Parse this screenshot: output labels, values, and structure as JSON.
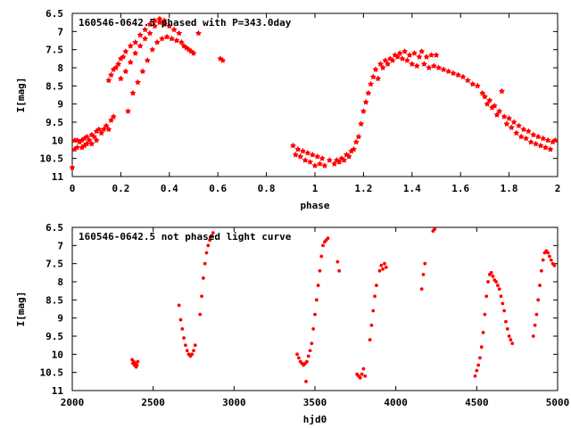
{
  "chart_data": [
    {
      "type": "scatter",
      "title": "160546-0642.5 phased with P=343.0day",
      "xlabel": "phase",
      "ylabel": "I[mag]",
      "xlim": [
        0,
        2
      ],
      "ylim": [
        11,
        6.5
      ],
      "y_inverted": true,
      "grid": false,
      "color": "#ff0000",
      "xticks": [
        "0",
        "0.2",
        "0.4",
        "0.6",
        "0.8",
        "1",
        "1.2",
        "1.4",
        "1.6",
        "1.8",
        "2"
      ],
      "yticks": [
        "6.5",
        "7",
        "7.5",
        "8",
        "8.5",
        "9",
        "9.5",
        "10",
        "10.5",
        "11"
      ],
      "points": [
        [
          0.0,
          10.75
        ],
        [
          0.01,
          10.0
        ],
        [
          0.01,
          10.25
        ],
        [
          0.02,
          10.0
        ],
        [
          0.02,
          10.2
        ],
        [
          0.03,
          10.05
        ],
        [
          0.04,
          10.0
        ],
        [
          0.04,
          10.2
        ],
        [
          0.05,
          9.95
        ],
        [
          0.05,
          10.15
        ],
        [
          0.06,
          9.9
        ],
        [
          0.06,
          10.1
        ],
        [
          0.07,
          10.0
        ],
        [
          0.08,
          9.85
        ],
        [
          0.08,
          10.1
        ],
        [
          0.09,
          9.9
        ],
        [
          0.1,
          9.75
        ],
        [
          0.1,
          10.0
        ],
        [
          0.11,
          9.7
        ],
        [
          0.12,
          9.8
        ],
        [
          0.13,
          9.7
        ],
        [
          0.14,
          9.6
        ],
        [
          0.15,
          9.7
        ],
        [
          0.15,
          8.35
        ],
        [
          0.16,
          9.45
        ],
        [
          0.16,
          8.2
        ],
        [
          0.17,
          9.35
        ],
        [
          0.17,
          8.05
        ],
        [
          0.18,
          8.0
        ],
        [
          0.19,
          7.9
        ],
        [
          0.2,
          8.3
        ],
        [
          0.2,
          7.75
        ],
        [
          0.21,
          7.7
        ],
        [
          0.22,
          8.1
        ],
        [
          0.22,
          7.55
        ],
        [
          0.23,
          9.2
        ],
        [
          0.24,
          7.85
        ],
        [
          0.24,
          7.4
        ],
        [
          0.25,
          8.7
        ],
        [
          0.26,
          7.6
        ],
        [
          0.26,
          7.3
        ],
        [
          0.27,
          8.4
        ],
        [
          0.28,
          7.4
        ],
        [
          0.28,
          7.1
        ],
        [
          0.29,
          8.1
        ],
        [
          0.3,
          7.2
        ],
        [
          0.3,
          6.95
        ],
        [
          0.31,
          7.8
        ],
        [
          0.32,
          7.05
        ],
        [
          0.32,
          6.8
        ],
        [
          0.33,
          7.5
        ],
        [
          0.34,
          6.85
        ],
        [
          0.34,
          6.7
        ],
        [
          0.35,
          7.3
        ],
        [
          0.36,
          6.75
        ],
        [
          0.36,
          6.65
        ],
        [
          0.37,
          7.2
        ],
        [
          0.38,
          6.8
        ],
        [
          0.38,
          6.7
        ],
        [
          0.39,
          7.15
        ],
        [
          0.4,
          6.85
        ],
        [
          0.41,
          7.2
        ],
        [
          0.42,
          6.95
        ],
        [
          0.43,
          7.25
        ],
        [
          0.44,
          7.05
        ],
        [
          0.45,
          7.3
        ],
        [
          0.46,
          7.4
        ],
        [
          0.47,
          7.45
        ],
        [
          0.48,
          7.5
        ],
        [
          0.49,
          7.55
        ],
        [
          0.5,
          7.6
        ],
        [
          0.52,
          7.05
        ],
        [
          0.61,
          7.75
        ],
        [
          0.62,
          7.8
        ],
        [
          0.91,
          10.15
        ],
        [
          0.92,
          10.4
        ],
        [
          0.93,
          10.25
        ],
        [
          0.94,
          10.45
        ],
        [
          0.95,
          10.3
        ],
        [
          0.96,
          10.55
        ],
        [
          0.97,
          10.35
        ],
        [
          0.98,
          10.6
        ],
        [
          0.99,
          10.4
        ],
        [
          1.0,
          10.7
        ],
        [
          1.01,
          10.45
        ],
        [
          1.02,
          10.65
        ],
        [
          1.03,
          10.5
        ],
        [
          1.04,
          10.7
        ],
        [
          1.06,
          10.55
        ],
        [
          1.08,
          10.65
        ],
        [
          1.09,
          10.55
        ],
        [
          1.1,
          10.6
        ],
        [
          1.11,
          10.5
        ],
        [
          1.12,
          10.55
        ],
        [
          1.13,
          10.4
        ],
        [
          1.14,
          10.45
        ],
        [
          1.15,
          10.3
        ],
        [
          1.16,
          10.25
        ],
        [
          1.17,
          10.05
        ],
        [
          1.18,
          9.9
        ],
        [
          1.19,
          9.55
        ],
        [
          1.2,
          9.2
        ],
        [
          1.21,
          8.95
        ],
        [
          1.22,
          8.7
        ],
        [
          1.23,
          8.45
        ],
        [
          1.24,
          8.25
        ],
        [
          1.25,
          8.05
        ],
        [
          1.26,
          8.3
        ],
        [
          1.27,
          7.9
        ],
        [
          1.28,
          8.0
        ],
        [
          1.29,
          7.8
        ],
        [
          1.3,
          7.9
        ],
        [
          1.31,
          7.75
        ],
        [
          1.32,
          7.8
        ],
        [
          1.33,
          7.65
        ],
        [
          1.34,
          7.7
        ],
        [
          1.35,
          7.6
        ],
        [
          1.36,
          7.75
        ],
        [
          1.37,
          7.55
        ],
        [
          1.38,
          7.8
        ],
        [
          1.39,
          7.65
        ],
        [
          1.4,
          7.9
        ],
        [
          1.41,
          7.6
        ],
        [
          1.42,
          7.95
        ],
        [
          1.43,
          7.7
        ],
        [
          1.44,
          7.55
        ],
        [
          1.45,
          7.9
        ],
        [
          1.46,
          7.7
        ],
        [
          1.47,
          8.0
        ],
        [
          1.48,
          7.65
        ],
        [
          1.49,
          7.95
        ],
        [
          1.5,
          7.65
        ],
        [
          1.51,
          8.0
        ],
        [
          1.53,
          8.05
        ],
        [
          1.55,
          8.1
        ],
        [
          1.57,
          8.15
        ],
        [
          1.59,
          8.2
        ],
        [
          1.61,
          8.25
        ],
        [
          1.63,
          8.35
        ],
        [
          1.65,
          8.45
        ],
        [
          1.67,
          8.5
        ],
        [
          1.69,
          8.7
        ],
        [
          1.7,
          8.8
        ],
        [
          1.71,
          9.0
        ],
        [
          1.72,
          8.9
        ],
        [
          1.73,
          9.1
        ],
        [
          1.74,
          9.05
        ],
        [
          1.75,
          9.3
        ],
        [
          1.76,
          9.2
        ],
        [
          1.77,
          8.65
        ],
        [
          1.78,
          9.35
        ],
        [
          1.79,
          9.55
        ],
        [
          1.8,
          9.4
        ],
        [
          1.81,
          9.65
        ],
        [
          1.82,
          9.5
        ],
        [
          1.83,
          9.8
        ],
        [
          1.84,
          9.6
        ],
        [
          1.85,
          9.9
        ],
        [
          1.86,
          9.7
        ],
        [
          1.87,
          9.95
        ],
        [
          1.88,
          9.75
        ],
        [
          1.89,
          10.05
        ],
        [
          1.9,
          9.85
        ],
        [
          1.91,
          10.1
        ],
        [
          1.92,
          9.9
        ],
        [
          1.93,
          10.15
        ],
        [
          1.94,
          9.95
        ],
        [
          1.95,
          10.2
        ],
        [
          1.96,
          10.0
        ],
        [
          1.97,
          10.25
        ],
        [
          1.98,
          10.05
        ],
        [
          1.99,
          10.0
        ]
      ]
    },
    {
      "type": "scatter",
      "title": "160546-0642.5 not phased light curve",
      "xlabel": "hjd0",
      "ylabel": "I[mag]",
      "xlim": [
        2000,
        5000
      ],
      "ylim": [
        11,
        6.5
      ],
      "y_inverted": true,
      "grid": false,
      "color": "#ff0000",
      "xticks": [
        "2000",
        "2500",
        "3000",
        "3500",
        "4000",
        "4500",
        "5000"
      ],
      "yticks": [
        "6.5",
        "7",
        "7.5",
        "8",
        "8.5",
        "9",
        "9.5",
        "10",
        "10.5",
        "11"
      ],
      "points": [
        [
          2370,
          10.15
        ],
        [
          2375,
          10.25
        ],
        [
          2380,
          10.2
        ],
        [
          2385,
          10.3
        ],
        [
          2390,
          10.25
        ],
        [
          2395,
          10.35
        ],
        [
          2400,
          10.3
        ],
        [
          2405,
          10.2
        ],
        [
          2660,
          8.65
        ],
        [
          2670,
          9.05
        ],
        [
          2680,
          9.3
        ],
        [
          2690,
          9.55
        ],
        [
          2700,
          9.75
        ],
        [
          2710,
          9.9
        ],
        [
          2720,
          10.0
        ],
        [
          2730,
          10.05
        ],
        [
          2740,
          10.0
        ],
        [
          2750,
          9.9
        ],
        [
          2760,
          9.75
        ],
        [
          2790,
          8.9
        ],
        [
          2800,
          8.4
        ],
        [
          2810,
          7.9
        ],
        [
          2820,
          7.5
        ],
        [
          2830,
          7.2
        ],
        [
          2840,
          7.0
        ],
        [
          2850,
          6.85
        ],
        [
          2860,
          6.75
        ],
        [
          2870,
          6.65
        ],
        [
          3390,
          10.0
        ],
        [
          3400,
          10.1
        ],
        [
          3410,
          10.2
        ],
        [
          3420,
          10.25
        ],
        [
          3430,
          10.3
        ],
        [
          3440,
          10.25
        ],
        [
          3445,
          10.75
        ],
        [
          3450,
          10.2
        ],
        [
          3460,
          10.05
        ],
        [
          3470,
          9.9
        ],
        [
          3480,
          9.7
        ],
        [
          3490,
          9.3
        ],
        [
          3500,
          8.9
        ],
        [
          3510,
          8.5
        ],
        [
          3520,
          8.1
        ],
        [
          3530,
          7.7
        ],
        [
          3540,
          7.3
        ],
        [
          3550,
          7.0
        ],
        [
          3560,
          6.9
        ],
        [
          3570,
          6.85
        ],
        [
          3580,
          6.8
        ],
        [
          3640,
          7.45
        ],
        [
          3650,
          7.7
        ],
        [
          3760,
          10.55
        ],
        [
          3770,
          10.6
        ],
        [
          3780,
          10.65
        ],
        [
          3790,
          10.55
        ],
        [
          3800,
          10.4
        ],
        [
          3810,
          10.6
        ],
        [
          3840,
          9.6
        ],
        [
          3850,
          9.2
        ],
        [
          3860,
          8.8
        ],
        [
          3870,
          8.4
        ],
        [
          3880,
          8.1
        ],
        [
          3900,
          7.7
        ],
        [
          3910,
          7.55
        ],
        [
          3920,
          7.65
        ],
        [
          3930,
          7.5
        ],
        [
          3940,
          7.6
        ],
        [
          4160,
          8.2
        ],
        [
          4170,
          7.8
        ],
        [
          4180,
          7.5
        ],
        [
          4230,
          6.6
        ],
        [
          4240,
          6.55
        ],
        [
          4490,
          10.6
        ],
        [
          4500,
          10.45
        ],
        [
          4510,
          10.3
        ],
        [
          4520,
          10.1
        ],
        [
          4530,
          9.8
        ],
        [
          4540,
          9.4
        ],
        [
          4550,
          8.9
        ],
        [
          4560,
          8.4
        ],
        [
          4570,
          8.0
        ],
        [
          4580,
          7.8
        ],
        [
          4590,
          7.75
        ],
        [
          4600,
          7.85
        ],
        [
          4610,
          7.95
        ],
        [
          4620,
          8.0
        ],
        [
          4630,
          8.1
        ],
        [
          4640,
          8.2
        ],
        [
          4650,
          8.4
        ],
        [
          4660,
          8.6
        ],
        [
          4670,
          8.8
        ],
        [
          4680,
          9.1
        ],
        [
          4690,
          9.3
        ],
        [
          4700,
          9.5
        ],
        [
          4710,
          9.6
        ],
        [
          4720,
          9.7
        ],
        [
          4850,
          9.5
        ],
        [
          4860,
          9.2
        ],
        [
          4870,
          8.9
        ],
        [
          4880,
          8.5
        ],
        [
          4890,
          8.1
        ],
        [
          4900,
          7.7
        ],
        [
          4910,
          7.4
        ],
        [
          4920,
          7.2
        ],
        [
          4930,
          7.15
        ],
        [
          4940,
          7.2
        ],
        [
          4950,
          7.3
        ],
        [
          4960,
          7.4
        ],
        [
          4970,
          7.5
        ],
        [
          4980,
          7.55
        ]
      ]
    }
  ]
}
